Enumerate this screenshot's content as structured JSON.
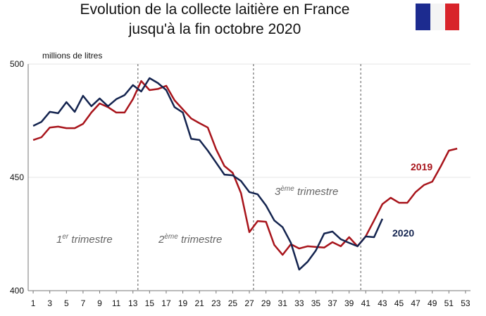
{
  "chart_data": {
    "type": "line",
    "title": [
      "Evolution de la collecte laitière en France",
      "jusqu'à la fin octobre 2020"
    ],
    "y_axis_label": "millions de litres",
    "xlim": [
      0.4,
      53.6
    ],
    "ylim": [
      400,
      500
    ],
    "yticks": [
      400,
      450,
      500
    ],
    "xticks": [
      1,
      3,
      5,
      7,
      9,
      11,
      13,
      15,
      17,
      19,
      21,
      23,
      25,
      27,
      29,
      31,
      33,
      35,
      37,
      39,
      41,
      43,
      45,
      47,
      49,
      51,
      53
    ],
    "quarter_lines": [
      13.6,
      27.5,
      40.4
    ],
    "annotations": [
      {
        "base": "1",
        "sup": "er",
        "rest": " trimestre"
      },
      {
        "base": "2",
        "sup": "ème",
        "rest": " trimestre"
      },
      {
        "base": "3",
        "sup": "ème",
        "rest": " trimestre"
      }
    ],
    "series": [
      {
        "name": "2019",
        "color": "#a8141b",
        "x": [
          1,
          2,
          3,
          4,
          5,
          6,
          7,
          8,
          9,
          10,
          11,
          12,
          13,
          14,
          15,
          16,
          17,
          18,
          19,
          20,
          21,
          22,
          23,
          24,
          25,
          26,
          27,
          28,
          29,
          30,
          31,
          32,
          33,
          34,
          35,
          36,
          37,
          38,
          39,
          40,
          41,
          42,
          43,
          44,
          45,
          46,
          47,
          48,
          49,
          50,
          51,
          52
        ],
        "values": [
          466.5,
          467.7,
          472,
          472.4,
          471.7,
          471.7,
          473.6,
          478.6,
          482.6,
          481,
          478.6,
          478.6,
          484.5,
          492.5,
          488.5,
          489,
          490.4,
          484,
          480,
          476,
          473.9,
          472,
          462.4,
          455,
          452,
          443,
          425.8,
          430.7,
          430.4,
          420.2,
          415.8,
          420.5,
          418.6,
          419.6,
          419.3,
          419,
          421.4,
          419.6,
          423.6,
          419.6,
          424,
          431,
          438.2,
          441,
          438.8,
          438.8,
          443.5,
          446.6,
          448.1,
          454.7,
          461.8,
          462.7
        ]
      },
      {
        "name": "2020",
        "color": "#14244f",
        "x": [
          1,
          2,
          3,
          4,
          5,
          6,
          7,
          8,
          9,
          10,
          11,
          12,
          13,
          14,
          15,
          16,
          17,
          18,
          19,
          20,
          21,
          22,
          23,
          24,
          25,
          26,
          27,
          28,
          29,
          30,
          31,
          32,
          33,
          34,
          35,
          36,
          37,
          38,
          39,
          40,
          41,
          42,
          43
        ],
        "values": [
          472.7,
          474.5,
          478.9,
          478.3,
          483.2,
          478.9,
          486,
          481.4,
          484.8,
          481.4,
          484.5,
          486.3,
          490.7,
          487.9,
          493.8,
          491.6,
          488.5,
          481,
          478.6,
          467,
          466.5,
          461.8,
          456.5,
          451.2,
          450.9,
          448.4,
          443.5,
          442.5,
          437.6,
          431,
          428,
          421.1,
          409.3,
          412.7,
          417.7,
          425.2,
          426.1,
          422.7,
          421.1,
          419.6,
          423.9,
          423.6,
          431.7
        ]
      }
    ]
  }
}
